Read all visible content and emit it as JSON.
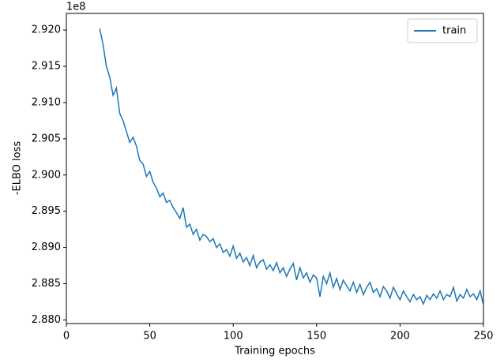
{
  "chart_data": {
    "type": "line",
    "xlabel": "Training epochs",
    "ylabel": "-ELBO loss",
    "y_offset_label": "1e8",
    "x": [
      20,
      22,
      24,
      26,
      28,
      30,
      32,
      34,
      36,
      38,
      40,
      42,
      44,
      46,
      48,
      50,
      52,
      54,
      56,
      58,
      60,
      62,
      64,
      66,
      68,
      70,
      72,
      74,
      76,
      78,
      80,
      82,
      84,
      86,
      88,
      90,
      92,
      94,
      96,
      98,
      100,
      102,
      104,
      106,
      108,
      110,
      112,
      114,
      116,
      118,
      120,
      122,
      124,
      126,
      128,
      130,
      132,
      134,
      136,
      138,
      140,
      142,
      144,
      146,
      148,
      150,
      152,
      154,
      156,
      158,
      160,
      162,
      164,
      166,
      168,
      170,
      172,
      174,
      176,
      178,
      180,
      182,
      184,
      186,
      188,
      190,
      192,
      194,
      196,
      198,
      200,
      202,
      204,
      206,
      208,
      210,
      212,
      214,
      216,
      218,
      220,
      222,
      224,
      226,
      228,
      230,
      232,
      234,
      236,
      238,
      240,
      242,
      244,
      246,
      248,
      250
    ],
    "series": [
      {
        "name": "train",
        "color": "#1f77b4",
        "values": [
          2.9202,
          2.918,
          2.915,
          2.9135,
          2.911,
          2.912,
          2.9085,
          2.9075,
          2.906,
          2.9045,
          2.9052,
          2.904,
          2.902,
          2.9015,
          2.8998,
          2.9005,
          2.899,
          2.8982,
          2.897,
          2.8975,
          2.8962,
          2.8965,
          2.8955,
          2.8948,
          2.894,
          2.8955,
          2.8928,
          2.8932,
          2.8918,
          2.8925,
          2.891,
          2.8918,
          2.8915,
          2.8908,
          2.8912,
          2.89,
          2.8905,
          2.8893,
          2.8897,
          2.8888,
          2.8902,
          2.8885,
          2.8892,
          2.888,
          2.8886,
          2.8875,
          2.8889,
          2.8872,
          2.888,
          2.8883,
          2.887,
          2.8876,
          2.8868,
          2.8879,
          2.8865,
          2.8872,
          2.886,
          2.887,
          2.8878,
          2.8855,
          2.8872,
          2.8858,
          2.8865,
          2.8852,
          2.8862,
          2.8858,
          2.8832,
          2.886,
          2.885,
          2.8865,
          2.8845,
          2.8857,
          2.8842,
          2.8855,
          2.8847,
          2.884,
          2.8852,
          2.8838,
          2.8849,
          2.8835,
          2.8845,
          2.8852,
          2.8838,
          2.8843,
          2.8832,
          2.8846,
          2.884,
          2.883,
          2.8845,
          2.8836,
          2.8828,
          2.884,
          2.8832,
          2.8825,
          2.8835,
          2.8828,
          2.8832,
          2.8822,
          2.8834,
          2.8828,
          2.8836,
          2.883,
          2.884,
          2.8828,
          2.8835,
          2.8832,
          2.8845,
          2.8826,
          2.8835,
          2.883,
          2.8842,
          2.8832,
          2.8836,
          2.8828,
          2.884,
          2.882
        ]
      }
    ],
    "xlim": [
      0,
      250
    ],
    "ylim": [
      2.8795,
      2.9223
    ],
    "xticks": [
      0,
      50,
      100,
      150,
      200,
      250
    ],
    "yticks": [
      {
        "value": 2.88,
        "label": "2.880"
      },
      {
        "value": 2.885,
        "label": "2.885"
      },
      {
        "value": 2.89,
        "label": "2.890"
      },
      {
        "value": 2.895,
        "label": "2.895"
      },
      {
        "value": 2.9,
        "label": "2.900"
      },
      {
        "value": 2.905,
        "label": "2.905"
      },
      {
        "value": 2.91,
        "label": "2.910"
      },
      {
        "value": 2.915,
        "label": "2.915"
      },
      {
        "value": 2.92,
        "label": "2.920"
      }
    ],
    "grid": false,
    "legend": "upper right"
  }
}
